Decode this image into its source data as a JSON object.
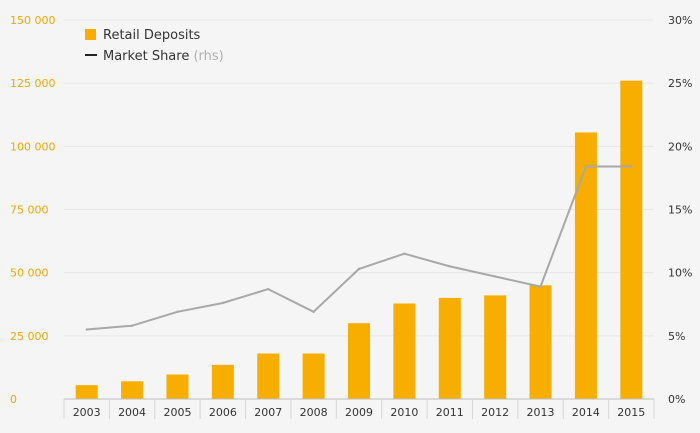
{
  "chart_data": {
    "type": "bar",
    "categories": [
      "2003",
      "2004",
      "2005",
      "2006",
      "2007",
      "2008",
      "2009",
      "2010",
      "2011",
      "2012",
      "2013",
      "2014",
      "2015"
    ],
    "series": [
      {
        "name": "Retail Deposits",
        "type": "bar",
        "axis": "left",
        "color": "#f7ae00",
        "values": [
          5500,
          7000,
          9700,
          13500,
          18000,
          18000,
          30000,
          37800,
          40000,
          41000,
          45000,
          105500,
          126000
        ]
      },
      {
        "name": "Market Share",
        "name_suffix": "(rhs)",
        "type": "line",
        "axis": "right",
        "color": "#a8a8a8",
        "legend_color": "#222222",
        "values": [
          5.5,
          5.8,
          6.9,
          7.6,
          8.7,
          6.9,
          10.3,
          11.5,
          10.5,
          9.7,
          8.9,
          18.4,
          18.4
        ]
      }
    ],
    "y_left": {
      "ylim": [
        0,
        150000
      ],
      "ticks": [
        0,
        25000,
        50000,
        75000,
        100000,
        125000,
        150000
      ],
      "tick_labels": [
        "0",
        "25 000",
        "50 000",
        "75 000",
        "100 000",
        "125 000",
        "150 000"
      ]
    },
    "y_right": {
      "ylim": [
        0,
        30
      ],
      "ticks": [
        0,
        5,
        10,
        15,
        20,
        25,
        30
      ],
      "tick_labels": [
        "0%",
        "5%",
        "10%",
        "15%",
        "20%",
        "25%",
        "30%"
      ]
    },
    "title": "",
    "xlabel": "",
    "ylabel": "",
    "grid": true,
    "legend_position": "top-left",
    "colors": {
      "background": "#f5f5f5",
      "grid": "#e6e6e6",
      "left_axis_text": "#f0a800",
      "text": "#333333"
    }
  }
}
